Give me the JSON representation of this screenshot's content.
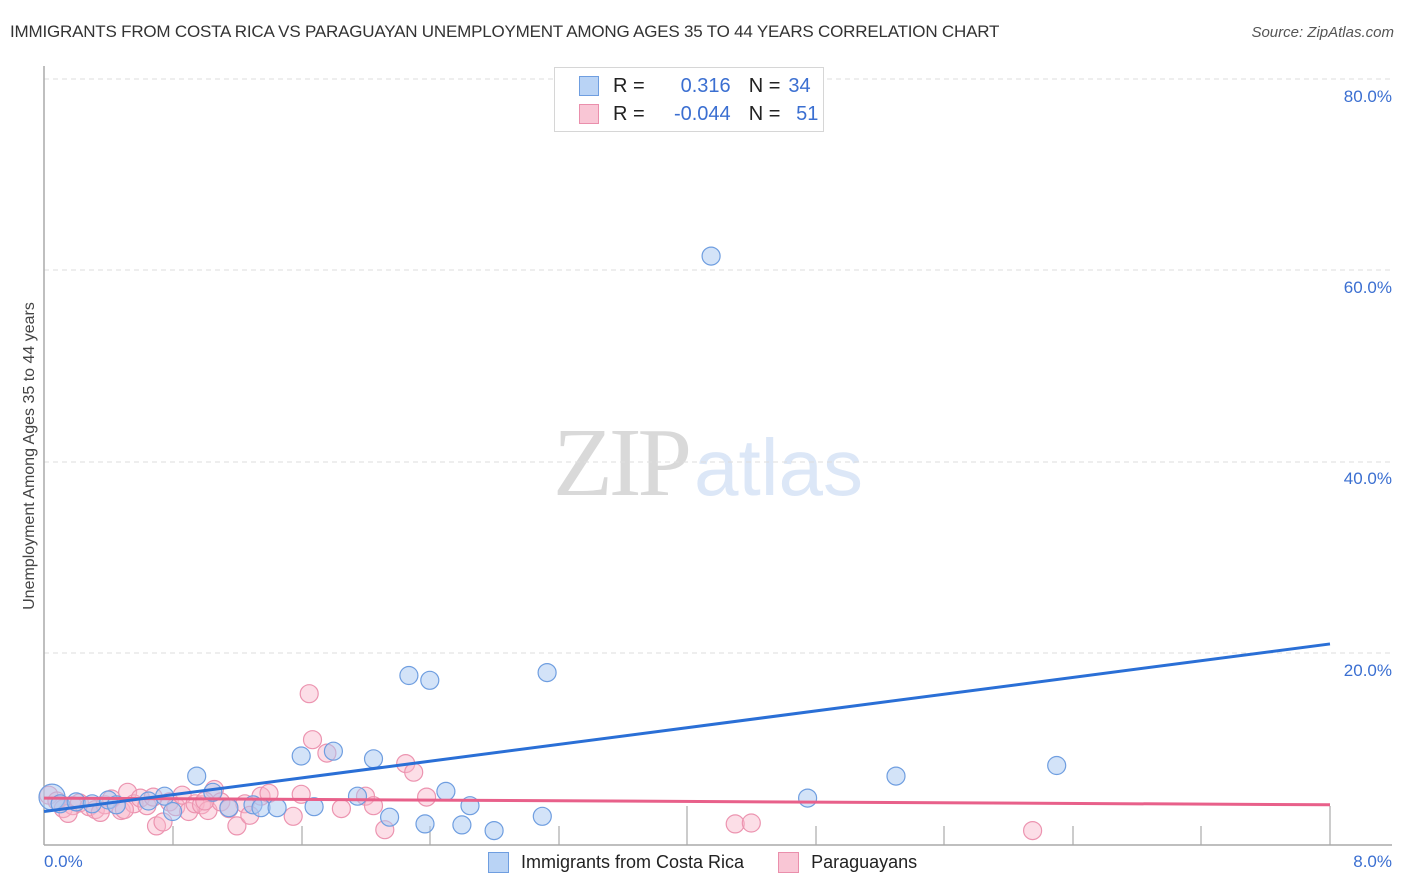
{
  "header": {
    "title": "IMMIGRANTS FROM COSTA RICA VS PARAGUAYAN UNEMPLOYMENT AMONG AGES 35 TO 44 YEARS CORRELATION CHART",
    "source": "Source: ZipAtlas.com"
  },
  "watermark": {
    "zip": "ZIP",
    "atlas": "atlas"
  },
  "legend_stats": {
    "rows": [
      {
        "series": "Immigrants from Costa Rica",
        "r_label": "R =",
        "r_value": "0.316",
        "n_label": "N =",
        "n_value": "34",
        "color": "#a9c8f2",
        "border": "#6f9ee0"
      },
      {
        "series": "Paraguayans",
        "r_label": "R =",
        "r_value": "-0.044",
        "n_label": "N =",
        "n_value": "51",
        "color": "#f8c0d1",
        "border": "#ea8fac"
      }
    ]
  },
  "axes": {
    "ylabel": "Unemployment Among Ages 35 to 44 years",
    "y_ticks": [
      "80.0%",
      "60.0%",
      "40.0%",
      "20.0%"
    ],
    "x_ticks": [
      "0.0%",
      "8.0%"
    ]
  },
  "bottom_legend": {
    "items": [
      {
        "label": "Immigrants from Costa Rica",
        "color": "#b9d3f5",
        "border": "#6f9ee0"
      },
      {
        "label": "Paraguayans",
        "color": "#f9c6d5",
        "border": "#ea8fac"
      }
    ]
  },
  "colors": {
    "blue_line": "#2a6fd6",
    "pink_line": "#e8608a",
    "axis_text": "#3b6fd1"
  },
  "chart_data": {
    "type": "scatter",
    "title": "IMMIGRANTS FROM COSTA RICA VS PARAGUAYAN UNEMPLOYMENT AMONG AGES 35 TO 44 YEARS CORRELATION CHART",
    "xlabel": "Immigrants from Costa Rica",
    "ylabel": "Unemployment Among Ages 35 to 44 years",
    "xlim": [
      0,
      8
    ],
    "ylim": [
      0,
      80
    ],
    "x_ticks": [
      "0.0%",
      "8.0%"
    ],
    "y_ticks": [
      "20.0%",
      "40.0%",
      "60.0%",
      "80.0%"
    ],
    "grid": true,
    "legend_position": "bottom",
    "series": [
      {
        "name": "Immigrants from Costa Rica",
        "r": 0.316,
        "n": 34,
        "trend": {
          "x": [
            0,
            8
          ],
          "y": [
            3.5,
            21.0
          ]
        },
        "points": [
          [
            0.05,
            5.0
          ],
          [
            0.1,
            4.3
          ],
          [
            0.2,
            4.5
          ],
          [
            0.3,
            4.3
          ],
          [
            0.4,
            4.7
          ],
          [
            0.45,
            4.2
          ],
          [
            0.65,
            4.6
          ],
          [
            0.75,
            5.1
          ],
          [
            0.8,
            3.5
          ],
          [
            0.95,
            7.2
          ],
          [
            1.05,
            5.5
          ],
          [
            1.15,
            3.9
          ],
          [
            1.3,
            4.2
          ],
          [
            1.35,
            3.9
          ],
          [
            1.45,
            3.9
          ],
          [
            1.6,
            9.3
          ],
          [
            1.68,
            4.0
          ],
          [
            1.8,
            9.8
          ],
          [
            1.95,
            5.1
          ],
          [
            2.05,
            9.0
          ],
          [
            2.15,
            2.9
          ],
          [
            2.27,
            17.7
          ],
          [
            2.37,
            2.2
          ],
          [
            2.4,
            17.2
          ],
          [
            2.5,
            5.6
          ],
          [
            2.6,
            2.1
          ],
          [
            2.65,
            4.1
          ],
          [
            2.8,
            1.5
          ],
          [
            3.1,
            3.0
          ],
          [
            3.13,
            18.0
          ],
          [
            4.15,
            61.5
          ],
          [
            4.75,
            4.9
          ],
          [
            5.3,
            7.2
          ],
          [
            6.3,
            8.3
          ]
        ]
      },
      {
        "name": "Paraguayans",
        "r": -0.044,
        "n": 51,
        "trend": {
          "x": [
            0,
            8
          ],
          "y": [
            4.9,
            4.2
          ]
        },
        "points": [
          [
            0.03,
            5.2
          ],
          [
            0.08,
            4.6
          ],
          [
            0.12,
            3.8
          ],
          [
            0.18,
            4.1
          ],
          [
            0.22,
            4.4
          ],
          [
            0.28,
            4.0
          ],
          [
            0.32,
            3.7
          ],
          [
            0.38,
            4.2
          ],
          [
            0.42,
            4.8
          ],
          [
            0.48,
            3.6
          ],
          [
            0.52,
            5.5
          ],
          [
            0.56,
            4.3
          ],
          [
            0.6,
            4.9
          ],
          [
            0.64,
            4.1
          ],
          [
            0.7,
            2.0
          ],
          [
            0.74,
            2.4
          ],
          [
            0.78,
            4.5
          ],
          [
            0.82,
            4.0
          ],
          [
            0.86,
            5.2
          ],
          [
            0.9,
            3.5
          ],
          [
            0.94,
            4.3
          ],
          [
            0.98,
            4.2
          ],
          [
            1.02,
            3.6
          ],
          [
            1.06,
            5.8
          ],
          [
            1.1,
            4.5
          ],
          [
            1.15,
            3.8
          ],
          [
            1.2,
            2.0
          ],
          [
            1.25,
            4.3
          ],
          [
            1.35,
            5.1
          ],
          [
            1.55,
            3.0
          ],
          [
            1.6,
            5.3
          ],
          [
            1.65,
            15.8
          ],
          [
            1.67,
            11.0
          ],
          [
            1.76,
            9.6
          ],
          [
            1.85,
            3.8
          ],
          [
            2.0,
            5.1
          ],
          [
            2.05,
            4.1
          ],
          [
            2.12,
            1.6
          ],
          [
            2.25,
            8.5
          ],
          [
            2.3,
            7.6
          ],
          [
            2.38,
            5.0
          ],
          [
            4.3,
            2.2
          ],
          [
            4.4,
            2.3
          ],
          [
            6.15,
            1.5
          ],
          [
            0.15,
            3.3
          ],
          [
            0.35,
            3.4
          ],
          [
            0.5,
            3.7
          ],
          [
            0.68,
            5.0
          ],
          [
            1.0,
            4.6
          ],
          [
            1.28,
            3.1
          ],
          [
            1.4,
            5.4
          ]
        ]
      }
    ]
  }
}
